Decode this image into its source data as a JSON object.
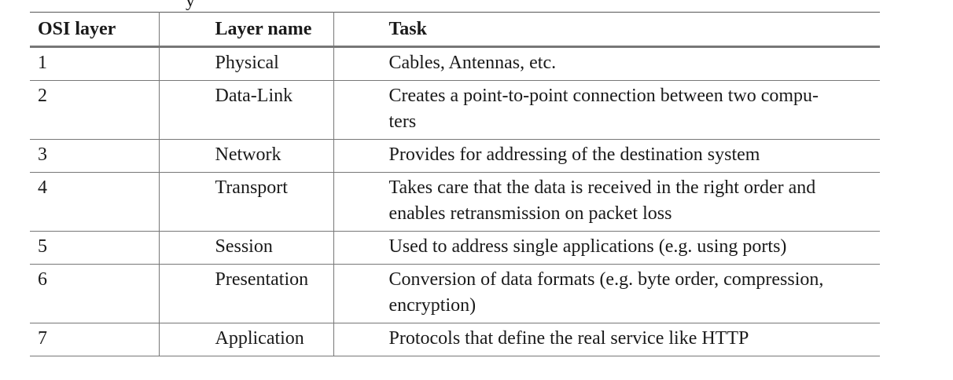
{
  "caption_fragment": "y",
  "table": {
    "headers": [
      "OSI layer",
      "Layer name",
      "Task"
    ],
    "rows": [
      {
        "layer": "1",
        "name": "Physical",
        "task": "Cables, Antennas, etc."
      },
      {
        "layer": "2",
        "name": "Data-Link",
        "task": "Creates a point-to-point connection between two compu-\nters"
      },
      {
        "layer": "3",
        "name": "Network",
        "task": "Provides for addressing of the destination system"
      },
      {
        "layer": "4",
        "name": "Transport",
        "task": "Takes care that the data is received in the right order and\nenables retransmission on packet loss"
      },
      {
        "layer": "5",
        "name": "Session",
        "task": "Used to address single applications (e.g. using ports)"
      },
      {
        "layer": "6",
        "name": "Presentation",
        "task": "Conversion of data formats (e.g. byte order, compression,\nencryption)"
      },
      {
        "layer": "7",
        "name": "Application",
        "task": "Protocols that define the real service like HTTP"
      }
    ]
  }
}
